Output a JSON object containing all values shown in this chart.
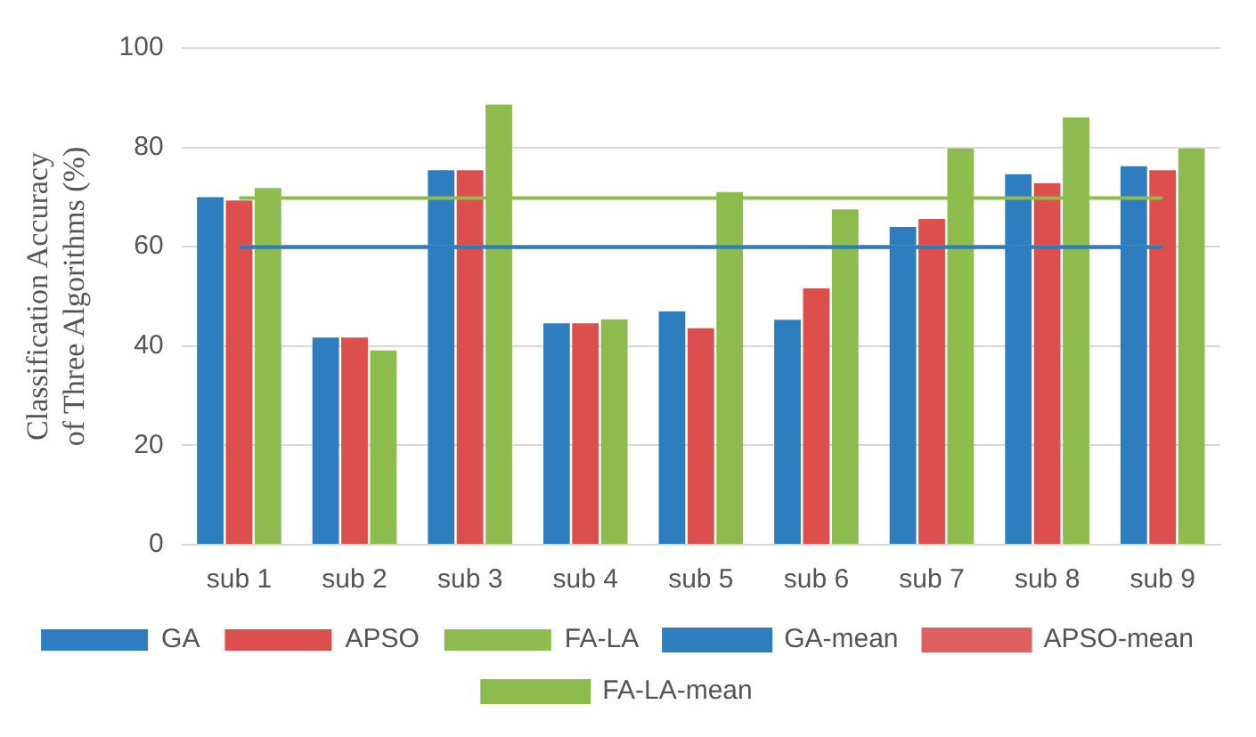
{
  "chart_data": {
    "type": "bar",
    "ylabel": "Classification Accuracy of Three Algorithms (%)",
    "categories": [
      "sub 1",
      "sub 2",
      "sub 3",
      "sub 4",
      "sub 5",
      "sub 6",
      "sub 7",
      "sub 8",
      "sub 9"
    ],
    "series": [
      {
        "name": "GA",
        "color": "#2e7ebf",
        "values": [
          70.0,
          41.7,
          75.4,
          44.6,
          47.0,
          45.3,
          64.0,
          74.6,
          76.2
        ]
      },
      {
        "name": "APSO",
        "color": "#dd4f4c",
        "values": [
          69.3,
          41.7,
          75.4,
          44.6,
          43.6,
          51.6,
          65.6,
          72.8,
          75.4
        ]
      },
      {
        "name": "FA-LA",
        "color": "#8ebb4e",
        "values": [
          71.8,
          39.1,
          88.6,
          45.4,
          71.0,
          67.5,
          79.8,
          86.0,
          79.8
        ]
      },
      {
        "name": "GA-mean",
        "type": "line",
        "color": "#2e7ebf",
        "values": [
          59.9,
          59.9,
          59.9,
          59.9,
          59.9,
          59.9,
          59.9,
          59.9,
          59.9
        ]
      },
      {
        "name": "APSO-mean",
        "type": "line",
        "color": "#e06060",
        "values": [
          60,
          60,
          60,
          60,
          60,
          60,
          60,
          60,
          60
        ]
      },
      {
        "name": "FA-LA-mean",
        "type": "line",
        "color": "#8ebb4e",
        "values": [
          69.8,
          69.8,
          69.8,
          69.8,
          69.8,
          69.8,
          69.8,
          69.8,
          69.8
        ]
      }
    ],
    "ylim": [
      0,
      100
    ],
    "yticks": [
      0,
      20,
      40,
      60,
      80,
      100
    ],
    "grid": "y",
    "legend": "bottom",
    "marker": "none"
  }
}
